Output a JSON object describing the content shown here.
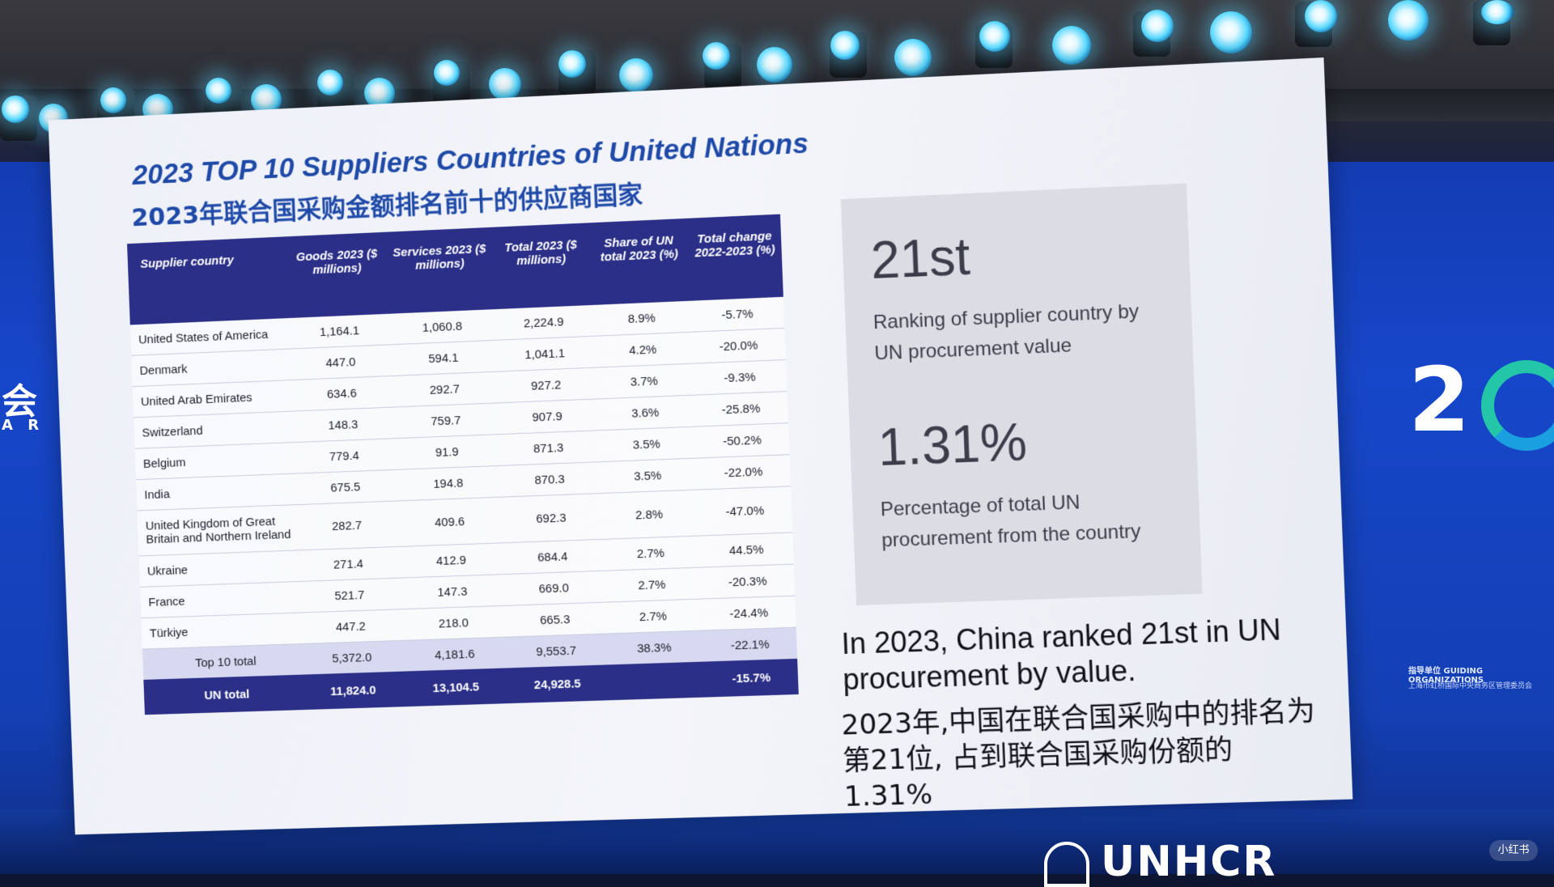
{
  "slide": {
    "title_en": "2023 TOP 10 Suppliers Countries of United Nations",
    "title_zh": "2023年联合国采购金额排名前十的供应商国家",
    "table": {
      "headers": [
        "Supplier country",
        "Goods 2023 ($ millions)",
        "Services 2023 ($ millions)",
        "Total 2023 ($ millions)",
        "Share of UN total 2023 (%)",
        "Total change 2022-2023 (%)"
      ],
      "rows": [
        [
          "United States of America",
          "1,164.1",
          "1,060.8",
          "2,224.9",
          "8.9%",
          "-5.7%"
        ],
        [
          "Denmark",
          "447.0",
          "594.1",
          "1,041.1",
          "4.2%",
          "-20.0%"
        ],
        [
          "United Arab Emirates",
          "634.6",
          "292.7",
          "927.2",
          "3.7%",
          "-9.3%"
        ],
        [
          "Switzerland",
          "148.3",
          "759.7",
          "907.9",
          "3.6%",
          "-25.8%"
        ],
        [
          "Belgium",
          "779.4",
          "91.9",
          "871.3",
          "3.5%",
          "-50.2%"
        ],
        [
          "India",
          "675.5",
          "194.8",
          "870.3",
          "3.5%",
          "-22.0%"
        ],
        [
          "United Kingdom of Great Britain and Northern Ireland",
          "282.7",
          "409.6",
          "692.3",
          "2.8%",
          "-47.0%"
        ],
        [
          "Ukraine",
          "271.4",
          "412.9",
          "684.4",
          "2.7%",
          "44.5%"
        ],
        [
          "France",
          "521.7",
          "147.3",
          "669.0",
          "2.7%",
          "-20.3%"
        ],
        [
          "Türkiye",
          "447.2",
          "218.0",
          "665.3",
          "2.7%",
          "-24.4%"
        ]
      ],
      "top10_total": [
        "Top 10 total",
        "5,372.0",
        "4,181.6",
        "9,553.7",
        "38.3%",
        "-22.1%"
      ],
      "un_total": [
        "UN total",
        "11,824.0",
        "13,104.5",
        "24,928.5",
        "",
        "-15.7%"
      ]
    },
    "stats": {
      "rank_value": "21st",
      "rank_desc": "Ranking of supplier country by UN procurement value",
      "pct_value": "1.31%",
      "pct_desc": "Percentage of total UN procurement from the country"
    },
    "caption_en": "In 2023, China ranked 21st in UN procurement by value.",
    "caption_zh": "2023年,中国在联合国采购中的排名为第21位, 占到联合国采购份额的1.31%"
  },
  "venue": {
    "left_wall_char": "会",
    "left_wall_sub": "A R",
    "right_wall_digit": "2",
    "guiding_label": "指导单位 GUIDING ORGANIZATIONS",
    "guiding_sub": "上海市虹桥国际中央商务区管理委员会",
    "bottom_logo": "UNHCR",
    "watermark": "小红书"
  },
  "colors": {
    "slide_header": "#2b2f87",
    "title_blue": "#1f4aa8",
    "led_wall": "#1646c9",
    "stage_light": "#58d8ff"
  }
}
